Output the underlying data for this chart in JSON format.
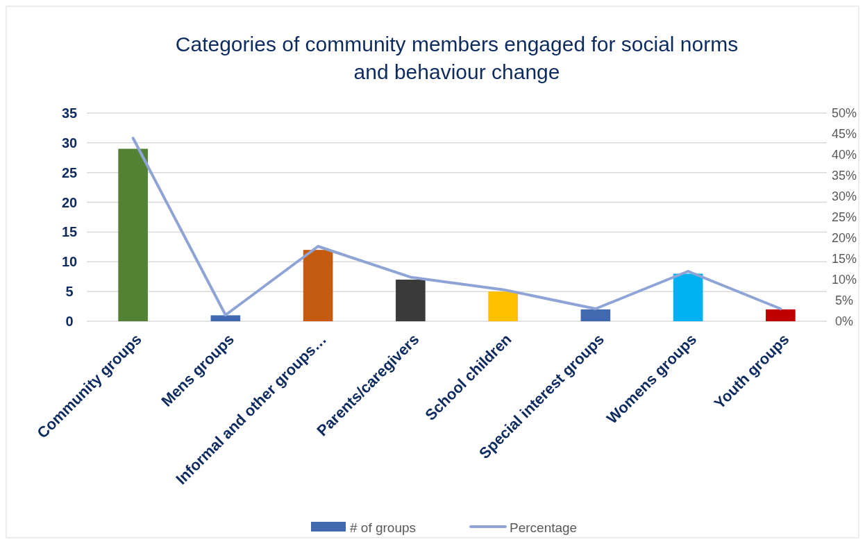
{
  "chart_data": {
    "type": "bar",
    "title": "Categories of community members engaged for social norms and behaviour change",
    "categories": [
      "Community groups",
      "Mens groups",
      "Informal and other groups…",
      "Parents/caregivers",
      "School children",
      "Special interest groups",
      "Womens groups",
      "Youth groups"
    ],
    "series": [
      {
        "name": "# of groups",
        "color": "#4169b0",
        "colors": [
          "#548235",
          "#4169b0",
          "#c55a11",
          "#3a3a3a",
          "#ffc000",
          "#4169b0",
          "#00b0f0",
          "#c00000"
        ],
        "values": [
          29,
          1,
          12,
          7,
          5,
          2,
          8,
          2
        ]
      },
      {
        "name": "Percentage",
        "type": "line",
        "axis": "y2",
        "color": "#8fa4d6",
        "values": [
          44,
          1.5,
          18,
          10.6,
          7.6,
          3,
          12,
          3
        ]
      }
    ],
    "ylim": [
      0,
      35
    ],
    "yticks": [
      0,
      5,
      10,
      15,
      20,
      25,
      30,
      35
    ],
    "y2lim": [
      0,
      50
    ],
    "y2ticks": [
      {
        "value": 0,
        "label": "0%"
      },
      {
        "value": 5,
        "label": "5%"
      },
      {
        "value": 10,
        "label": "10%"
      },
      {
        "value": 15,
        "label": "15%"
      },
      {
        "value": 20,
        "label": "20%"
      },
      {
        "value": 25,
        "label": "25%"
      },
      {
        "value": 30,
        "label": "30%"
      },
      {
        "value": 35,
        "label": "35%"
      },
      {
        "value": 40,
        "label": "40%"
      },
      {
        "value": 45,
        "label": "45%"
      },
      {
        "value": 50,
        "label": "50%"
      }
    ],
    "grid": "y",
    "legend": "bottom",
    "marker": "none",
    "line_style": "solid"
  }
}
